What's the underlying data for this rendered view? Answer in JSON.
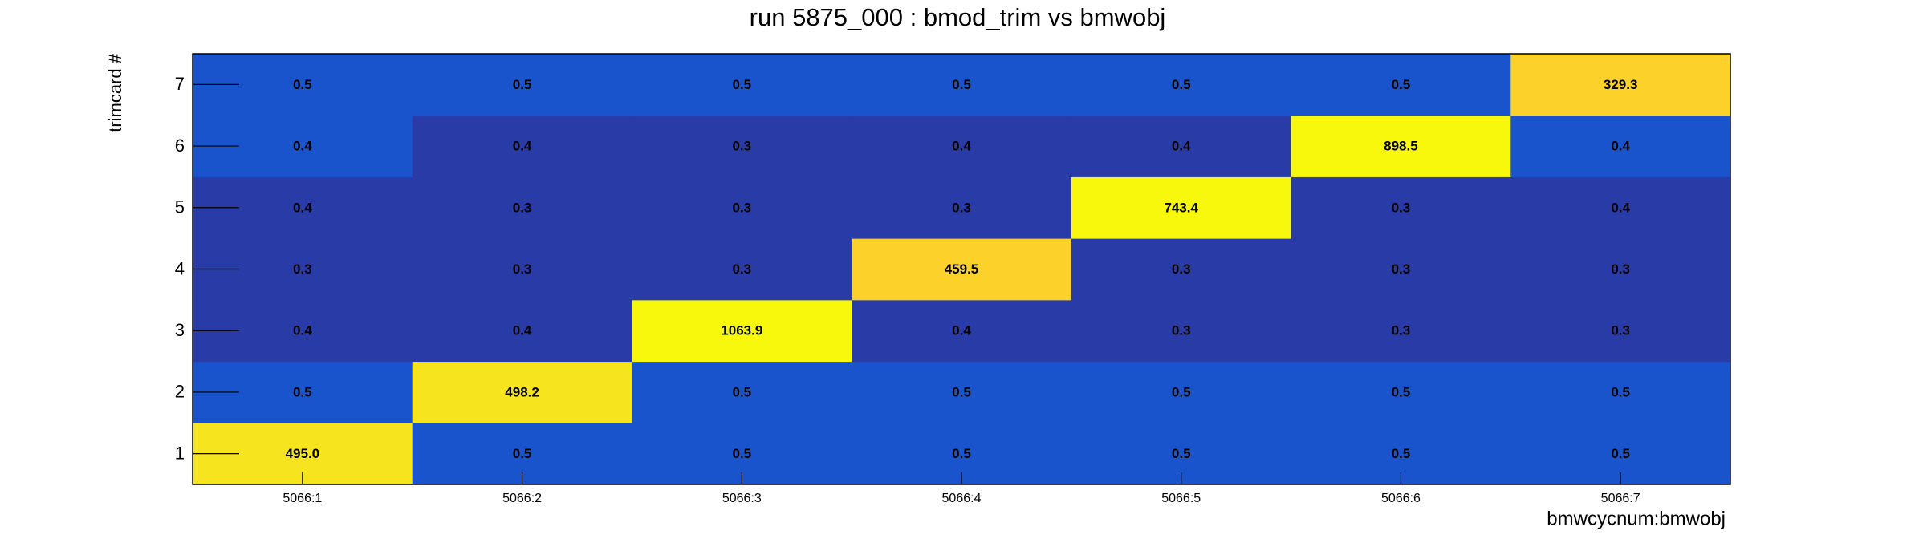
{
  "chart_data": {
    "type": "heatmap",
    "title": "run 5875_000 : bmod_trim vs bmwobj",
    "x_label": "bmwcycnum:bmwobj",
    "y_label": "trimcard #",
    "x_categories": [
      "5066:1",
      "5066:2",
      "5066:3",
      "5066:4",
      "5066:5",
      "5066:6",
      "5066:7"
    ],
    "y_categories": [
      "1",
      "2",
      "3",
      "4",
      "5",
      "6",
      "7"
    ],
    "values": [
      [
        495.0,
        0.5,
        0.5,
        0.5,
        0.5,
        0.5,
        0.5
      ],
      [
        0.5,
        498.2,
        0.5,
        0.5,
        0.5,
        0.5,
        0.5
      ],
      [
        0.4,
        0.4,
        1063.9,
        0.4,
        0.3,
        0.3,
        0.3
      ],
      [
        0.3,
        0.3,
        0.3,
        459.5,
        0.3,
        0.3,
        0.3
      ],
      [
        0.4,
        0.3,
        0.3,
        0.3,
        743.4,
        0.3,
        0.4
      ],
      [
        0.4,
        0.4,
        0.3,
        0.4,
        0.4,
        898.5,
        0.4
      ],
      [
        0.5,
        0.5,
        0.5,
        0.5,
        0.5,
        0.5,
        329.3
      ]
    ],
    "value_labels": [
      [
        "495.0",
        "0.5",
        "0.5",
        "0.5",
        "0.5",
        "0.5",
        "0.5"
      ],
      [
        "0.5",
        "498.2",
        "0.5",
        "0.5",
        "0.5",
        "0.5",
        "0.5"
      ],
      [
        "0.4",
        "0.4",
        "1063.9",
        "0.4",
        "0.3",
        "0.3",
        "0.3"
      ],
      [
        "0.3",
        "0.3",
        "0.3",
        "459.5",
        "0.3",
        "0.3",
        "0.3"
      ],
      [
        "0.4",
        "0.3",
        "0.3",
        "0.3",
        "743.4",
        "0.3",
        "0.4"
      ],
      [
        "0.4",
        "0.4",
        "0.3",
        "0.4",
        "0.4",
        "898.5",
        "0.4"
      ],
      [
        "0.5",
        "0.5",
        "0.5",
        "0.5",
        "0.5",
        "0.5",
        "329.3"
      ]
    ],
    "colors": [
      [
        "#f6e41e",
        "#1a54cc",
        "#1a54cc",
        "#1a54cc",
        "#1a54cc",
        "#1a54cc",
        "#1a54cc"
      ],
      [
        "#1a54cc",
        "#f6e41e",
        "#1a54cc",
        "#1a54cc",
        "#1a54cc",
        "#1a54cc",
        "#1a54cc"
      ],
      [
        "#283ba6",
        "#283ba6",
        "#f8f80c",
        "#283ba6",
        "#283ba6",
        "#283ba6",
        "#283ba6"
      ],
      [
        "#283ba6",
        "#283ba6",
        "#283ba6",
        "#fbd12a",
        "#283ba6",
        "#283ba6",
        "#283ba6"
      ],
      [
        "#283ba6",
        "#283ba6",
        "#283ba6",
        "#283ba6",
        "#f8f80c",
        "#283ba6",
        "#283ba6"
      ],
      [
        "#1a54cc",
        "#283ba6",
        "#283ba6",
        "#283ba6",
        "#283ba6",
        "#f8f80c",
        "#1a54cc"
      ],
      [
        "#1a54cc",
        "#1a54cc",
        "#1a54cc",
        "#1a54cc",
        "#1a54cc",
        "#1a54cc",
        "#fbd12a"
      ]
    ]
  }
}
